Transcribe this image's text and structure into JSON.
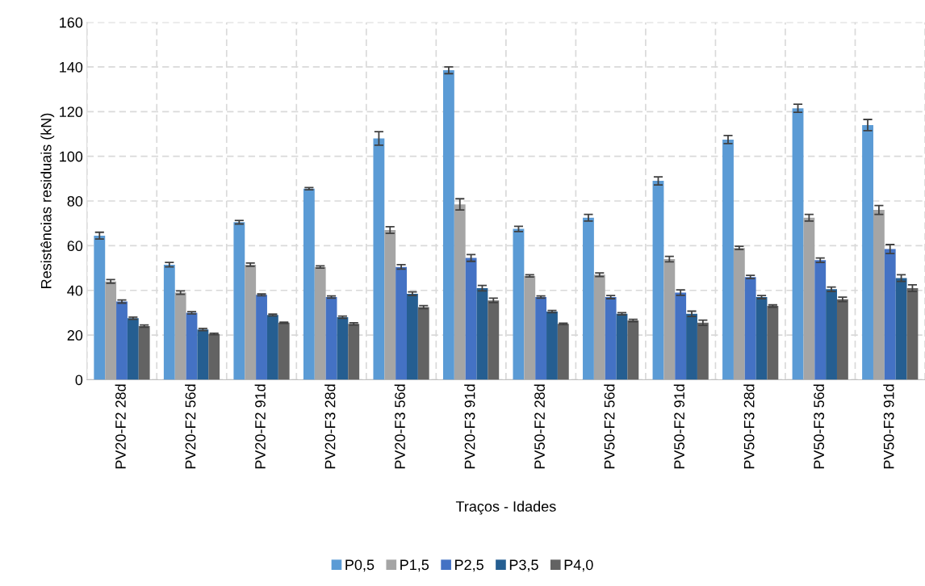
{
  "chart_data": {
    "type": "bar",
    "xlabel": "Traços - Idades",
    "ylabel": "Resistências residuais (kN)",
    "categories": [
      "PV20-F2 28d",
      "PV20-F2 56d",
      "PV20-F2 91d",
      "PV20-F3 28d",
      "PV20-F3 56d",
      "PV20-F3 91d",
      "PV50-F2 28d",
      "PV50-F2 56d",
      "PV50-F2 91d",
      "PV50-F3 28d",
      "PV50-F3 56d",
      "PV50-F3 91d"
    ],
    "series": [
      {
        "name": "P0,5",
        "color": "#5b9bd5",
        "values": [
          64.5,
          51.5,
          70.5,
          85.5,
          108,
          138.5,
          67.5,
          72.5,
          89,
          107.5,
          121.5,
          114
        ],
        "errors": [
          1.5,
          1,
          0.8,
          0.5,
          3,
          1.5,
          1.2,
          1.5,
          1.8,
          1.8,
          1.8,
          2.5
        ]
      },
      {
        "name": "P1,5",
        "color": "#a5a5a5",
        "values": [
          44,
          39,
          51.5,
          50.5,
          67,
          78.5,
          46.5,
          47,
          54,
          59,
          72.5,
          76
        ],
        "errors": [
          0.8,
          0.8,
          0.7,
          0.5,
          1.5,
          2.5,
          0.5,
          0.8,
          1.2,
          0.7,
          1.5,
          2
        ]
      },
      {
        "name": "P2,5",
        "color": "#4472c4",
        "values": [
          35,
          30,
          38,
          37,
          50.5,
          54.5,
          37,
          37,
          39,
          46,
          53.5,
          58.5
        ],
        "errors": [
          0.7,
          0.5,
          0.4,
          0.5,
          1,
          1.5,
          0.5,
          0.7,
          1.2,
          0.7,
          1,
          2
        ]
      },
      {
        "name": "P3,5",
        "color": "#255e91",
        "values": [
          27.5,
          22.5,
          29,
          28,
          38.5,
          41,
          30.5,
          29.5,
          29.5,
          37,
          40.5,
          45.5
        ],
        "errors": [
          0.5,
          0.5,
          0.4,
          0.5,
          0.8,
          1.2,
          0.5,
          0.5,
          1.2,
          0.7,
          1,
          1.5
        ]
      },
      {
        "name": "P4,0",
        "color": "#636363",
        "values": [
          24,
          20.5,
          25.5,
          25,
          32.5,
          35.5,
          25,
          26.5,
          25.5,
          33,
          36,
          41
        ],
        "errors": [
          0.5,
          0.3,
          0.3,
          0.5,
          0.7,
          1,
          0.3,
          0.5,
          1.2,
          0.5,
          1,
          1.5
        ]
      }
    ],
    "ylim": [
      0,
      160
    ],
    "yticks": [
      0,
      20,
      40,
      60,
      80,
      100,
      120,
      140,
      160
    ],
    "grid": true,
    "legend": "bottom"
  }
}
